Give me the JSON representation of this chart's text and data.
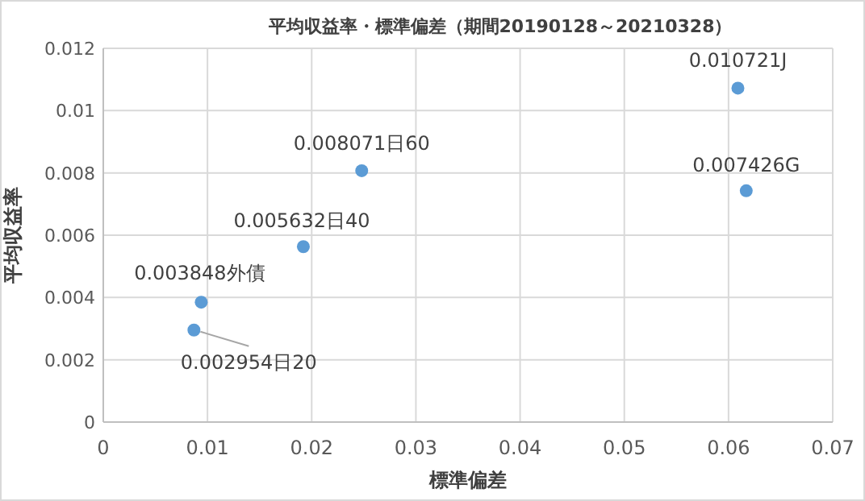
{
  "chart_data": {
    "type": "scatter",
    "title": "平均収益率・標準偏差（期間20190128～20210328）",
    "xlabel": "標準偏差",
    "ylabel": "平均収益率",
    "x": [
      0.0609,
      0.0617,
      0.0248,
      0.0192,
      0.0094,
      0.0087
    ],
    "values": [
      0.010721,
      0.007426,
      0.008071,
      0.005632,
      0.003848,
      0.002954
    ],
    "color": "#5b9bd5",
    "marker": "circle",
    "grid": true,
    "xlim": [
      0,
      0.07
    ],
    "xticks": [
      0,
      0.01,
      0.02,
      0.03,
      0.04,
      0.05,
      0.06,
      0.07
    ],
    "ylim": [
      0,
      0.012
    ],
    "yticks": [
      0,
      0.002,
      0.004,
      0.006,
      0.008,
      0.01,
      0.012
    ],
    "annotations": [
      {
        "text": "0.010721J",
        "x": 0.0609,
        "y": 0.010721
      },
      {
        "text": "0.007426G",
        "x": 0.0617,
        "y": 0.007426
      },
      {
        "text": "0.008071日60",
        "x": 0.0248,
        "y": 0.008071
      },
      {
        "text": "0.005632日40",
        "x": 0.0192,
        "y": 0.005632
      },
      {
        "text": "0.003848外債",
        "x": 0.0094,
        "y": 0.003848
      },
      {
        "text": "0.002954日20",
        "x": 0.0087,
        "y": 0.002954
      }
    ]
  }
}
